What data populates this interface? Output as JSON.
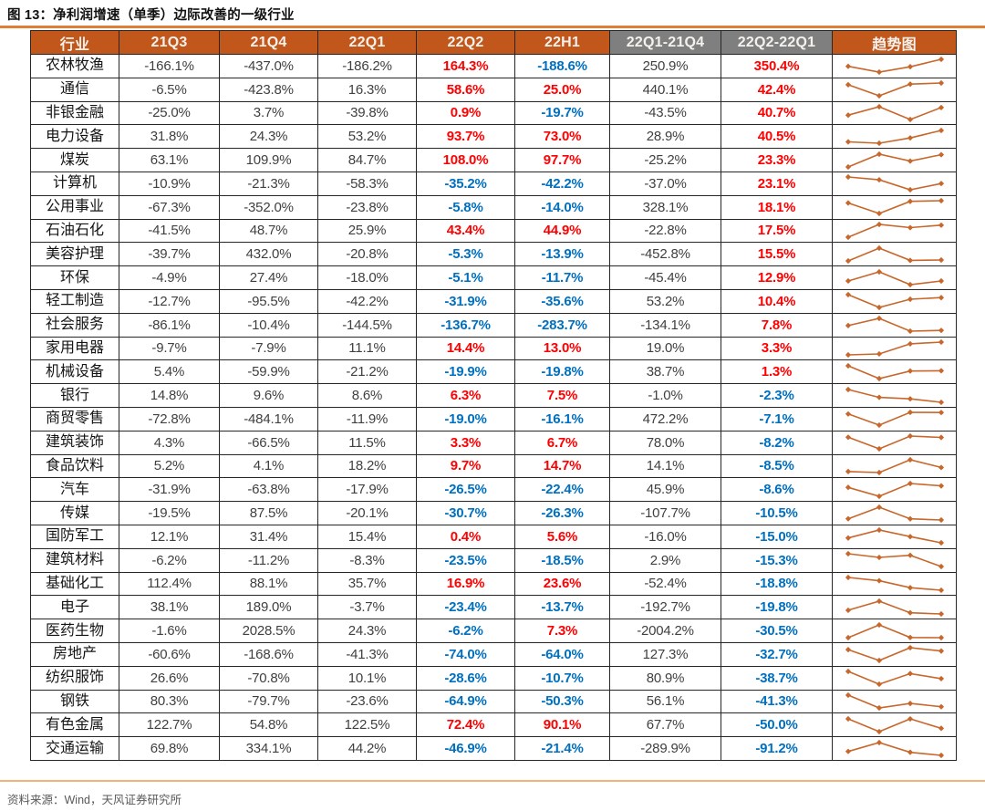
{
  "title": "图 13：净利润增速（单季）边际改善的一级行业",
  "source_note": "资料来源：Wind，天风证券研究所",
  "colors": {
    "header_bg": "#C1571A",
    "header_alt_bg": "#7F7F7F",
    "header_text": "#F5F2EE",
    "positive_value": "#FF0000",
    "negative_value": "#0070C0",
    "neutral_value": "#404040",
    "sparkline": "#C8672B",
    "title_rule": "#DF7F33",
    "footer_rule": "#F2B27C",
    "border": "#262626"
  },
  "chart_data": {
    "type": "table",
    "title": "图 13：净利润增速（单季）边际改善的一级行业",
    "unit": "%",
    "value_format": "one decimal place with % suffix",
    "color_rule_note": "columns 22Q2, 22H1, 22Q2-22Q1: red if positive, blue if negative; other numeric columns dark gray",
    "sparkline_note": "趋势图 column plots the four quarterly values 21Q3→21Q4→22Q1→22Q2 as an orange line with diamond markers",
    "columns": [
      {
        "key": "industry",
        "label": "行业",
        "header_style": "orange",
        "color_rule": "none"
      },
      {
        "key": "21Q3",
        "label": "21Q3",
        "header_style": "orange",
        "color_rule": "none"
      },
      {
        "key": "21Q4",
        "label": "21Q4",
        "header_style": "orange",
        "color_rule": "none"
      },
      {
        "key": "22Q1",
        "label": "22Q1",
        "header_style": "orange",
        "color_rule": "none"
      },
      {
        "key": "22Q2",
        "label": "22Q2",
        "header_style": "orange",
        "color_rule": "sign"
      },
      {
        "key": "22H1",
        "label": "22H1",
        "header_style": "orange",
        "color_rule": "sign"
      },
      {
        "key": "22Q1-21Q4",
        "label": "22Q1-21Q4",
        "header_style": "gray",
        "color_rule": "none"
      },
      {
        "key": "22Q2-22Q1",
        "label": "22Q2-22Q1",
        "header_style": "gray",
        "color_rule": "sign"
      },
      {
        "key": "trend",
        "label": "趋势图",
        "header_style": "orange",
        "color_rule": "spark"
      }
    ],
    "rows": [
      {
        "industry": "农林牧渔",
        "values": [
          -166.1,
          -437.0,
          -186.2,
          164.3,
          -188.6,
          250.9,
          350.4
        ]
      },
      {
        "industry": "通信",
        "values": [
          -6.5,
          -423.8,
          16.3,
          58.6,
          25.0,
          440.1,
          42.4
        ]
      },
      {
        "industry": "非银金融",
        "values": [
          -25.0,
          3.7,
          -39.8,
          0.9,
          -19.7,
          -43.5,
          40.7
        ]
      },
      {
        "industry": "电力设备",
        "values": [
          31.8,
          24.3,
          53.2,
          93.7,
          73.0,
          28.9,
          40.5
        ]
      },
      {
        "industry": "煤炭",
        "values": [
          63.1,
          109.9,
          84.7,
          108.0,
          97.7,
          -25.2,
          23.3
        ]
      },
      {
        "industry": "计算机",
        "values": [
          -10.9,
          -21.3,
          -58.3,
          -35.2,
          -42.2,
          -37.0,
          23.1
        ]
      },
      {
        "industry": "公用事业",
        "values": [
          -67.3,
          -352.0,
          -23.8,
          -5.8,
          -14.0,
          328.1,
          18.1
        ]
      },
      {
        "industry": "石油石化",
        "values": [
          -41.5,
          48.7,
          25.9,
          43.4,
          44.9,
          -22.8,
          17.5
        ]
      },
      {
        "industry": "美容护理",
        "values": [
          -39.7,
          432.0,
          -20.8,
          -5.3,
          -13.9,
          -452.8,
          15.5
        ]
      },
      {
        "industry": "环保",
        "values": [
          -4.9,
          27.4,
          -18.0,
          -5.1,
          -11.7,
          -45.4,
          12.9
        ]
      },
      {
        "industry": "轻工制造",
        "values": [
          -12.7,
          -95.5,
          -42.2,
          -31.9,
          -35.6,
          53.2,
          10.4
        ]
      },
      {
        "industry": "社会服务",
        "values": [
          -86.1,
          -10.4,
          -144.5,
          -136.7,
          -283.7,
          -134.1,
          7.8
        ]
      },
      {
        "industry": "家用电器",
        "values": [
          -9.7,
          -7.9,
          11.1,
          14.4,
          13.0,
          19.0,
          3.3
        ]
      },
      {
        "industry": "机械设备",
        "values": [
          5.4,
          -59.9,
          -21.2,
          -19.9,
          -19.8,
          38.7,
          1.3
        ]
      },
      {
        "industry": "银行",
        "values": [
          14.8,
          9.6,
          8.6,
          6.3,
          7.5,
          -1.0,
          -2.3
        ]
      },
      {
        "industry": "商贸零售",
        "values": [
          -72.8,
          -484.1,
          -11.9,
          -19.0,
          -16.1,
          472.2,
          -7.1
        ]
      },
      {
        "industry": "建筑装饰",
        "values": [
          4.3,
          -66.5,
          11.5,
          3.3,
          6.7,
          78.0,
          -8.2
        ]
      },
      {
        "industry": "食品饮料",
        "values": [
          5.2,
          4.1,
          18.2,
          9.7,
          14.7,
          14.1,
          -8.5
        ]
      },
      {
        "industry": "汽车",
        "values": [
          -31.9,
          -63.8,
          -17.9,
          -26.5,
          -22.4,
          45.9,
          -8.6
        ]
      },
      {
        "industry": "传媒",
        "values": [
          -19.5,
          87.5,
          -20.1,
          -30.7,
          -26.3,
          -107.7,
          -10.5
        ]
      },
      {
        "industry": "国防军工",
        "values": [
          12.1,
          31.4,
          15.4,
          0.4,
          5.6,
          -16.0,
          -15.0
        ]
      },
      {
        "industry": "建筑材料",
        "values": [
          -6.2,
          -11.2,
          -8.3,
          -23.5,
          -18.5,
          2.9,
          -15.3
        ]
      },
      {
        "industry": "基础化工",
        "values": [
          112.4,
          88.1,
          35.7,
          16.9,
          23.6,
          -52.4,
          -18.8
        ]
      },
      {
        "industry": "电子",
        "values": [
          38.1,
          189.0,
          -3.7,
          -23.4,
          -13.7,
          -192.7,
          -19.8
        ]
      },
      {
        "industry": "医药生物",
        "values": [
          -1.6,
          2028.5,
          24.3,
          -6.2,
          7.3,
          -2004.2,
          -30.5
        ]
      },
      {
        "industry": "房地产",
        "values": [
          -60.6,
          -168.6,
          -41.3,
          -74.0,
          -64.0,
          127.3,
          -32.7
        ]
      },
      {
        "industry": "纺织服饰",
        "values": [
          26.6,
          -70.8,
          10.1,
          -28.6,
          -10.7,
          80.9,
          -38.7
        ]
      },
      {
        "industry": "钢铁",
        "values": [
          80.3,
          -79.7,
          -23.6,
          -64.9,
          -50.3,
          56.1,
          -41.3
        ]
      },
      {
        "industry": "有色金属",
        "values": [
          122.7,
          54.8,
          122.5,
          72.4,
          90.1,
          67.7,
          -50.0
        ]
      },
      {
        "industry": "交通运输",
        "values": [
          69.8,
          334.1,
          44.2,
          -46.9,
          -21.4,
          -289.9,
          -91.2
        ]
      }
    ]
  }
}
